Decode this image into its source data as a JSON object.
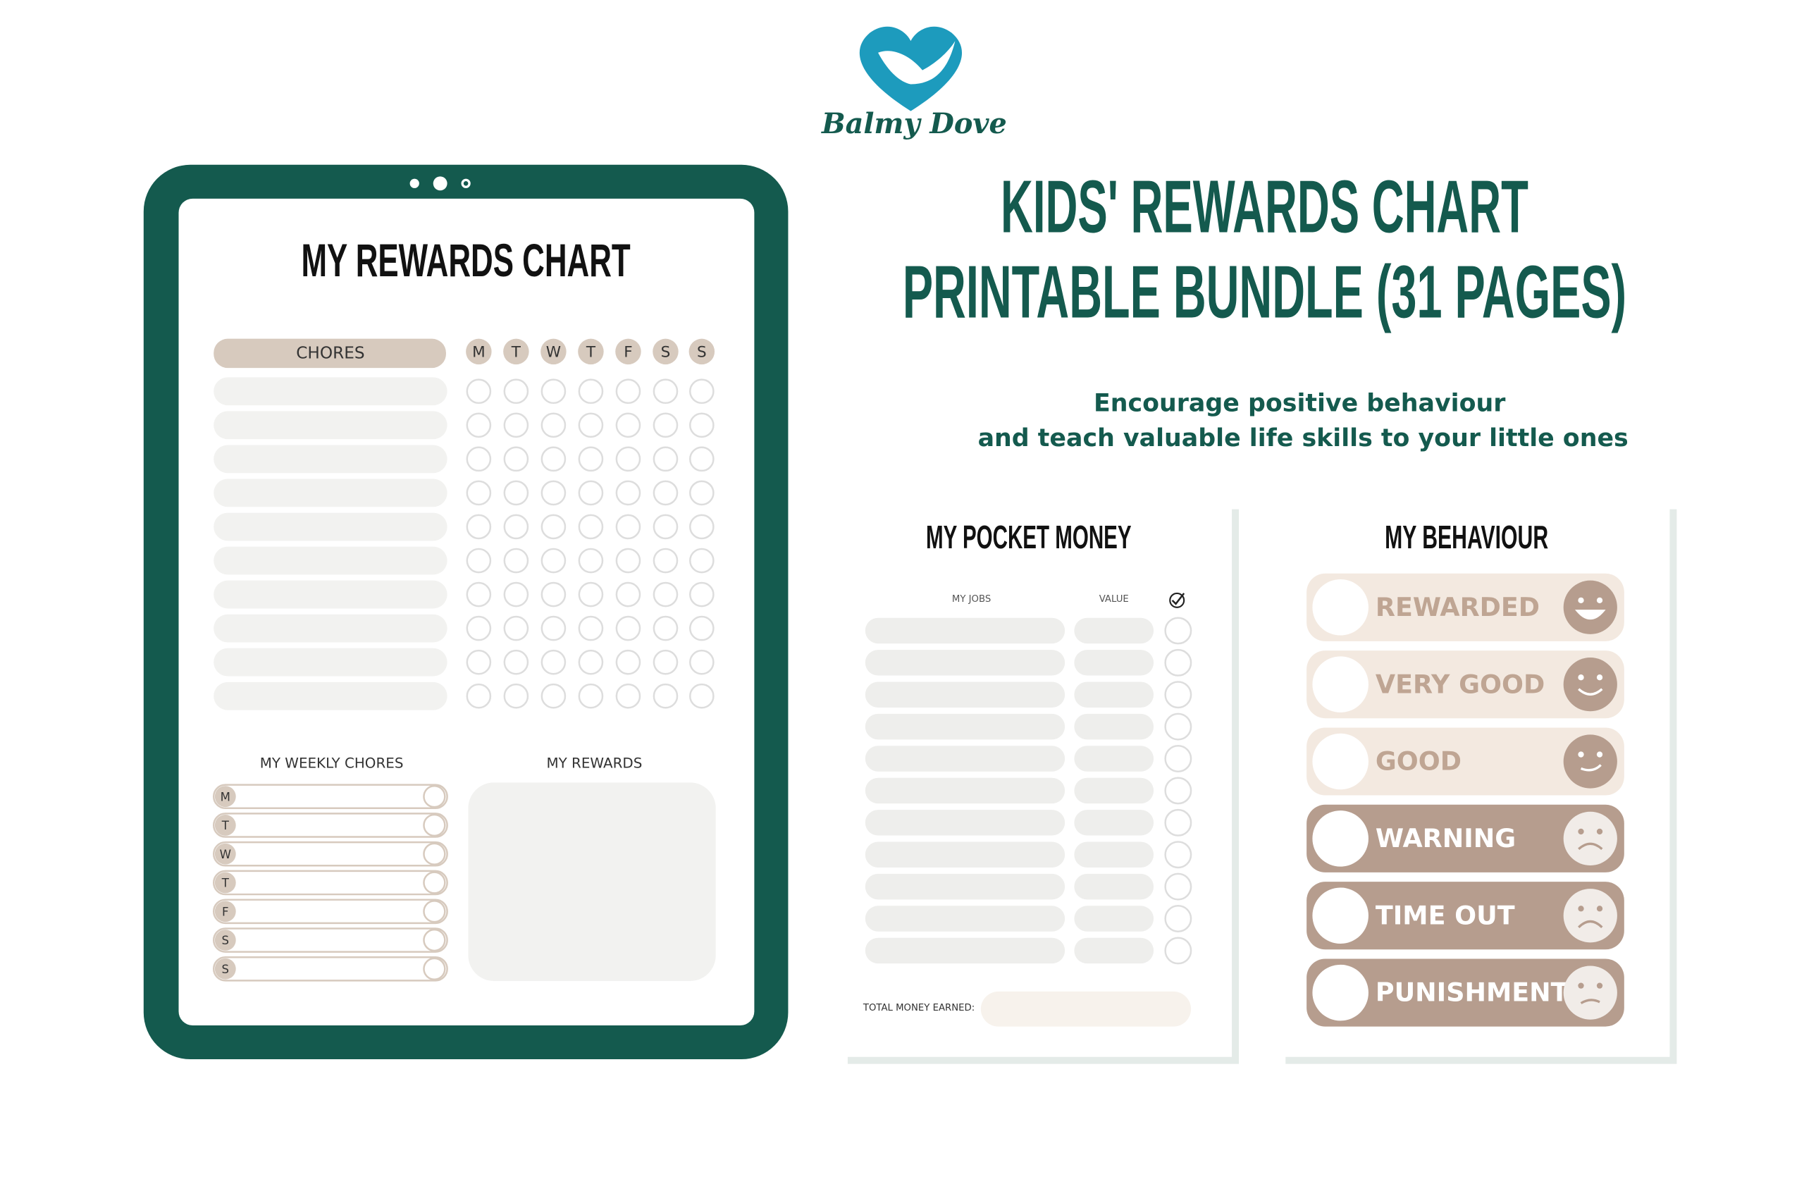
{
  "brand": "Balmy Dove",
  "headline": {
    "line1": "KIDS' REWARDS CHART",
    "line2": "PRINTABLE BUNDLE (31 PAGES)"
  },
  "tagline": {
    "line1": "Encourage positive behaviour",
    "line2": "and teach valuable life skills to your little ones"
  },
  "rewards_page": {
    "title": "MY REWARDS CHART",
    "chores_header": "CHORES",
    "days": [
      "M",
      "T",
      "W",
      "T",
      "F",
      "S",
      "S"
    ],
    "weekly_title": "MY WEEKLY CHORES",
    "weekly_days": [
      "M",
      "T",
      "W",
      "T",
      "F",
      "S",
      "S"
    ],
    "rewards_title": "MY REWARDS"
  },
  "pocket_money_page": {
    "title": "MY POCKET MONEY",
    "columns": [
      "MY JOBS",
      "VALUE"
    ],
    "total_label": "TOTAL MONEY EARNED:"
  },
  "behaviour_page": {
    "title": "MY BEHAVIOUR",
    "levels": [
      "REWARDED",
      "VERY GOOD",
      "GOOD",
      "WARNING",
      "TIME OUT",
      "PUNISHMENT"
    ]
  }
}
